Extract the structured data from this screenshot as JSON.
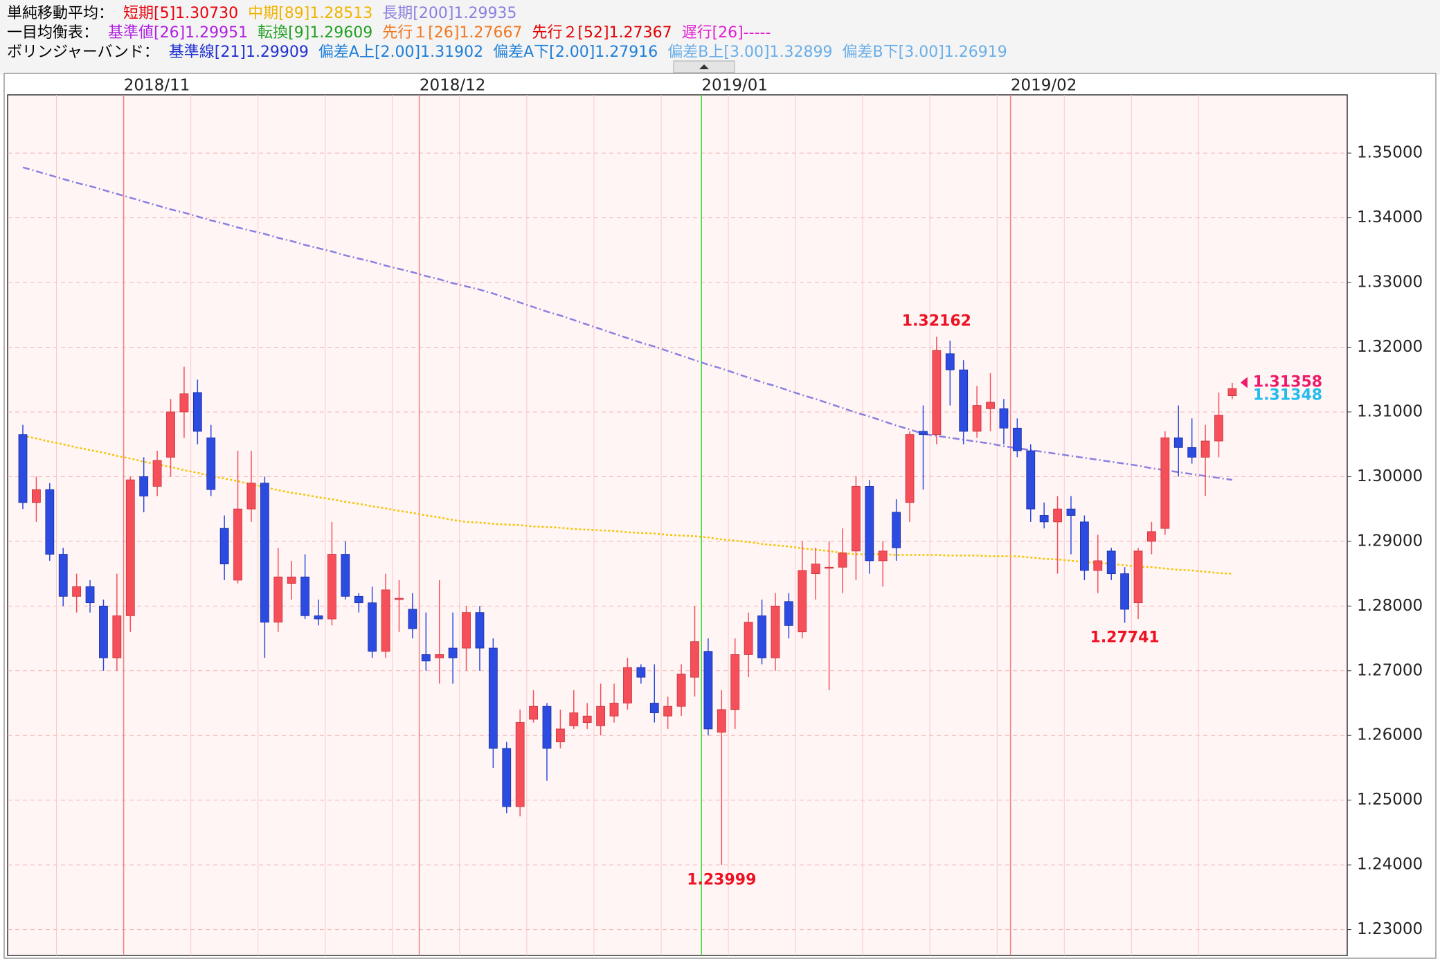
{
  "chart_data": {
    "type": "candlestick",
    "indicator_header": [
      [
        {
          "text": "単純移動平均：",
          "color": "#000000"
        },
        {
          "text": "短期[5]1.30730",
          "color": "#e8000b"
        },
        {
          "text": "中期[89]1.28513",
          "color": "#f0b400"
        },
        {
          "text": "長期[200]1.29935",
          "color": "#8a7fe0"
        }
      ],
      [
        {
          "text": "一目均衡表：",
          "color": "#000000"
        },
        {
          "text": "基準値[26]1.29951",
          "color": "#b020e0"
        },
        {
          "text": "転換[9]1.29609",
          "color": "#22a022"
        },
        {
          "text": "先行１[26]1.27667",
          "color": "#f07820"
        },
        {
          "text": "先行２[52]1.27367",
          "color": "#e00000"
        },
        {
          "text": "遅行[26]-----",
          "color": "#e020d0"
        }
      ],
      [
        {
          "text": "ボリンジャーバンド：",
          "color": "#000000"
        },
        {
          "text": "基準線[21]1.29909",
          "color": "#2030d0"
        },
        {
          "text": "偏差A上[2.00]1.31902",
          "color": "#1e7fd8"
        },
        {
          "text": "偏差A下[2.00]1.27916",
          "color": "#1e7fd8"
        },
        {
          "text": "偏差B上[3.00]1.32899",
          "color": "#6aaee8"
        },
        {
          "text": "偏差B下[3.00]1.26919",
          "color": "#6aaee8"
        }
      ]
    ],
    "categories": [
      null,
      null,
      null,
      null,
      null,
      null,
      null,
      null,
      "2018/11",
      null,
      null,
      null,
      null,
      null,
      null,
      null,
      null,
      null,
      null,
      null,
      null,
      null,
      null,
      null,
      null,
      null,
      null,
      null,
      null,
      null,
      "2018/12",
      null,
      null,
      null,
      null,
      null,
      null,
      null,
      null,
      null,
      null,
      null,
      null,
      null,
      null,
      null,
      null,
      null,
      null,
      null,
      null,
      "2019/01",
      null,
      null,
      null,
      null,
      null,
      null,
      null,
      null,
      null,
      null,
      null,
      null,
      null,
      null,
      null,
      null,
      null,
      null,
      null,
      null,
      null,
      null,
      "2019/02",
      null,
      null,
      null,
      null,
      null,
      null,
      null,
      null,
      null,
      null,
      null,
      null,
      null,
      null,
      null,
      null
    ],
    "month_line_colors": [
      "#f08080",
      "#f08080",
      "#33dd33",
      "#f08080"
    ],
    "candles": {
      "up_color": "#f5505a",
      "down_color": "#2c4be0",
      "open": [
        1.3065,
        1.296,
        1.298,
        1.288,
        1.2815,
        1.283,
        1.28,
        1.272,
        1.2785,
        1.3,
        1.2985,
        1.303,
        1.31,
        1.313,
        1.306,
        1.292,
        1.284,
        1.295,
        1.299,
        1.2775,
        1.2835,
        1.2845,
        1.2785,
        1.278,
        1.288,
        1.2815,
        1.2805,
        1.273,
        1.281,
        1.2795,
        1.2725,
        1.272,
        1.2735,
        1.2735,
        1.279,
        1.2735,
        1.258,
        1.249,
        1.2625,
        1.2645,
        1.259,
        1.2615,
        1.262,
        1.2615,
        1.263,
        1.265,
        1.2705,
        1.265,
        1.263,
        1.2645,
        1.269,
        1.273,
        1.2605,
        1.264,
        1.2725,
        1.2785,
        1.272,
        1.2807,
        1.276,
        1.285,
        1.286,
        1.286,
        1.2885,
        1.2985,
        1.287,
        1.2945,
        1.296,
        1.307,
        1.3065,
        1.319,
        1.3165,
        1.307,
        1.3105,
        1.3105,
        1.3075,
        1.304,
        1.294,
        1.293,
        1.295,
        1.293,
        1.2855,
        1.2885,
        1.285,
        1.2805,
        1.29,
        1.292,
        1.306,
        1.3045,
        1.303,
        1.3055,
        1.3125
      ],
      "high": [
        1.308,
        1.3,
        1.299,
        1.289,
        1.285,
        1.284,
        1.281,
        1.285,
        1.3,
        1.303,
        1.304,
        1.312,
        1.317,
        1.315,
        1.308,
        1.294,
        1.304,
        1.304,
        1.3,
        1.289,
        1.287,
        1.288,
        1.281,
        1.293,
        1.29,
        1.282,
        1.283,
        1.285,
        1.284,
        1.282,
        1.279,
        1.284,
        1.279,
        1.28,
        1.28,
        1.275,
        1.259,
        1.264,
        1.267,
        1.265,
        1.264,
        1.267,
        1.265,
        1.268,
        1.268,
        1.272,
        1.271,
        1.271,
        1.266,
        1.271,
        1.28,
        1.275,
        1.267,
        1.275,
        1.279,
        1.281,
        1.282,
        1.282,
        1.29,
        1.289,
        1.29,
        1.292,
        1.3,
        1.2995,
        1.29,
        1.2965,
        1.307,
        1.311,
        1.32162,
        1.321,
        1.318,
        1.314,
        1.316,
        1.312,
        1.309,
        1.305,
        1.296,
        1.297,
        1.297,
        1.294,
        1.291,
        1.289,
        1.286,
        1.289,
        1.293,
        1.307,
        1.311,
        1.309,
        1.308,
        1.313,
        1.3145
      ],
      "low": [
        1.295,
        1.293,
        1.287,
        1.28,
        1.279,
        1.279,
        1.27,
        1.27,
        1.276,
        1.2945,
        1.297,
        1.3,
        1.306,
        1.305,
        1.297,
        1.284,
        1.2835,
        1.293,
        1.272,
        1.276,
        1.281,
        1.278,
        1.277,
        1.277,
        1.281,
        1.279,
        1.272,
        1.272,
        1.276,
        1.275,
        1.27,
        1.268,
        1.268,
        1.27,
        1.27,
        1.255,
        1.248,
        1.2475,
        1.262,
        1.253,
        1.258,
        1.261,
        1.261,
        1.26,
        1.262,
        1.264,
        1.268,
        1.262,
        1.261,
        1.263,
        1.266,
        1.26,
        1.23999,
        1.261,
        1.269,
        1.271,
        1.27,
        1.275,
        1.275,
        1.281,
        1.267,
        1.282,
        1.284,
        1.285,
        1.283,
        1.287,
        1.293,
        1.298,
        1.305,
        1.311,
        1.305,
        1.306,
        1.307,
        1.305,
        1.303,
        1.293,
        1.292,
        1.285,
        1.288,
        1.284,
        1.282,
        1.284,
        1.27741,
        1.278,
        1.288,
        1.291,
        1.3,
        1.302,
        1.297,
        1.303,
        1.312
      ],
      "close": [
        1.296,
        1.298,
        1.288,
        1.2815,
        1.283,
        1.2805,
        1.272,
        1.2785,
        1.2995,
        1.297,
        1.3025,
        1.31,
        1.3128,
        1.307,
        1.298,
        1.2865,
        1.295,
        1.299,
        1.2775,
        1.2845,
        1.2845,
        1.2785,
        1.278,
        1.288,
        1.2815,
        1.2805,
        1.273,
        1.2825,
        1.2812,
        1.2765,
        1.2715,
        1.2725,
        1.272,
        1.279,
        1.2735,
        1.258,
        1.249,
        1.262,
        1.2645,
        1.258,
        1.261,
        1.2635,
        1.263,
        1.2645,
        1.265,
        1.2705,
        1.269,
        1.2635,
        1.2645,
        1.2695,
        1.2745,
        1.261,
        1.264,
        1.2725,
        1.2775,
        1.272,
        1.28,
        1.277,
        1.2855,
        1.2865,
        1.286,
        1.2882,
        1.2985,
        1.287,
        1.2885,
        1.289,
        1.3065,
        1.3065,
        1.3195,
        1.3165,
        1.307,
        1.311,
        1.3115,
        1.3075,
        1.304,
        1.295,
        1.293,
        1.295,
        1.294,
        1.2855,
        1.287,
        1.285,
        1.2795,
        1.2885,
        1.2915,
        1.306,
        1.3045,
        1.303,
        1.3055,
        1.3095,
        1.3136
      ]
    },
    "series": [
      {
        "name": "長期[200]",
        "color": "#8a7fe0",
        "style": "dashdot",
        "values": [
          1.3478,
          1.3472,
          1.3466,
          1.346,
          1.3454,
          1.3449,
          1.3443,
          1.3437,
          1.3431,
          1.3425,
          1.3419,
          1.3413,
          1.3408,
          1.3402,
          1.3396,
          1.3391,
          1.3385,
          1.338,
          1.3375,
          1.3369,
          1.3364,
          1.3358,
          1.3353,
          1.3348,
          1.3342,
          1.3337,
          1.3332,
          1.3326,
          1.3321,
          1.3316,
          1.331,
          1.3305,
          1.3299,
          1.3294,
          1.3289,
          1.3283,
          1.3276,
          1.3269,
          1.3262,
          1.3255,
          1.3249,
          1.3242,
          1.3235,
          1.3228,
          1.3221,
          1.3214,
          1.3207,
          1.3201,
          1.3194,
          1.3187,
          1.318,
          1.3173,
          1.3167,
          1.316,
          1.3153,
          1.3146,
          1.314,
          1.3133,
          1.3126,
          1.312,
          1.3113,
          1.3106,
          1.3099,
          1.3093,
          1.3086,
          1.3079,
          1.3073,
          1.3066,
          1.3063,
          1.306,
          1.3057,
          1.3054,
          1.3051,
          1.3047,
          1.3044,
          1.3041,
          1.3038,
          1.3035,
          1.3032,
          1.3029,
          1.3026,
          1.3023,
          1.302,
          1.3017,
          1.3013,
          1.301,
          1.3007,
          1.3004,
          1.3001,
          1.2998,
          1.2995
        ]
      },
      {
        "name": "中期[89]",
        "color": "#f5c400",
        "style": "dotted",
        "values": [
          1.3063,
          1.3059,
          1.3054,
          1.305,
          1.3045,
          1.3041,
          1.3037,
          1.3032,
          1.3028,
          1.3023,
          1.3019,
          1.3015,
          1.301,
          1.3006,
          1.3001,
          1.2997,
          1.2993,
          1.2988,
          1.2984,
          1.2979,
          1.2975,
          1.2972,
          1.2968,
          1.2965,
          1.2961,
          1.2958,
          1.2954,
          1.2951,
          1.2947,
          1.2944,
          1.294,
          1.2937,
          1.2933,
          1.293,
          1.2929,
          1.2927,
          1.2926,
          1.2925,
          1.2923,
          1.2922,
          1.2921,
          1.2919,
          1.2918,
          1.2917,
          1.2916,
          1.2914,
          1.2913,
          1.2912,
          1.291,
          1.2909,
          1.2908,
          1.2906,
          1.2903,
          1.2901,
          1.2899,
          1.2896,
          1.2894,
          1.2892,
          1.2889,
          1.2887,
          1.2885,
          1.2882,
          1.288,
          1.288,
          1.288,
          1.2879,
          1.2879,
          1.2879,
          1.2879,
          1.2878,
          1.2878,
          1.2878,
          1.2877,
          1.2877,
          1.2877,
          1.2875,
          1.2873,
          1.2872,
          1.287,
          1.2868,
          1.2867,
          1.2865,
          1.2863,
          1.2861,
          1.286,
          1.2858,
          1.2856,
          1.2855,
          1.2853,
          1.2851,
          1.285
        ]
      }
    ],
    "high_labels": [
      1.32162
    ],
    "low_labels": [
      1.23999,
      1.27741
    ],
    "label_color": "#ee1122",
    "current_prices": [
      1.31358,
      1.31348
    ],
    "current_price_colors": [
      "#ee1a6a",
      "#22bbee"
    ],
    "ylim": [
      1.226,
      1.359
    ],
    "yticks": [
      {
        "value": 1.23,
        "label": "1.23000"
      },
      {
        "value": 1.24,
        "label": "1.24000"
      },
      {
        "value": 1.25,
        "label": "1.25000"
      },
      {
        "value": 1.26,
        "label": "1.26000"
      },
      {
        "value": 1.27,
        "label": "1.27000"
      },
      {
        "value": 1.28,
        "label": "1.28000"
      },
      {
        "value": 1.29,
        "label": "1.29000"
      },
      {
        "value": 1.3,
        "label": "1.30000"
      },
      {
        "value": 1.31,
        "label": "1.31000"
      },
      {
        "value": 1.32,
        "label": "1.32000"
      },
      {
        "value": 1.33,
        "label": "1.33000"
      },
      {
        "value": 1.34,
        "label": "1.34000"
      },
      {
        "value": 1.35,
        "label": "1.35000"
      }
    ],
    "grid": true
  }
}
